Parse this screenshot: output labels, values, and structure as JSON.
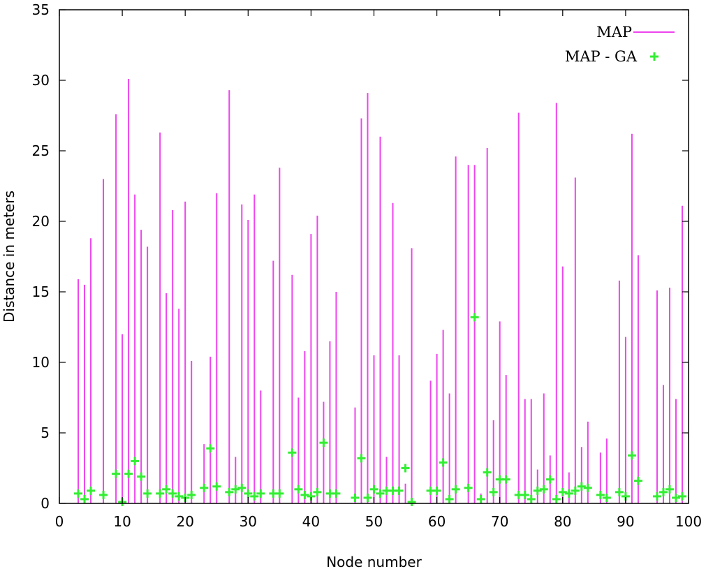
{
  "chart_data": {
    "type": "bar",
    "xlabel": "Node number",
    "ylabel": "Distance in meters",
    "xlim": [
      0,
      100
    ],
    "ylim": [
      0,
      35
    ],
    "xticks": [
      0,
      10,
      20,
      30,
      40,
      50,
      60,
      70,
      80,
      90,
      100
    ],
    "yticks": [
      0,
      5,
      10,
      15,
      20,
      25,
      30,
      35
    ],
    "grid": false,
    "legend_position": "top-right",
    "series": [
      {
        "name": "MAP",
        "style": "impulses",
        "color": "#ee44ee",
        "x": [
          3,
          4,
          5,
          7,
          9,
          10,
          11,
          12,
          13,
          14,
          16,
          17,
          18,
          19,
          20,
          21,
          23,
          24,
          25,
          27,
          28,
          29,
          30,
          31,
          32,
          34,
          35,
          37,
          38,
          39,
          40,
          41,
          42,
          43,
          44,
          47,
          48,
          49,
          50,
          51,
          52,
          53,
          54,
          55,
          56,
          59,
          60,
          61,
          62,
          63,
          65,
          66,
          67,
          68,
          69,
          70,
          71,
          73,
          74,
          75,
          76,
          77,
          78,
          79,
          80,
          81,
          82,
          83,
          84,
          86,
          87,
          89,
          90,
          91,
          92,
          95,
          96,
          97,
          98,
          99
        ],
        "y": [
          15.9,
          15.5,
          18.8,
          23.0,
          27.6,
          12.0,
          30.1,
          21.9,
          19.4,
          18.2,
          26.3,
          14.9,
          20.8,
          13.8,
          21.4,
          10.1,
          4.2,
          10.4,
          22.0,
          29.3,
          3.3,
          21.2,
          20.1,
          21.9,
          8.0,
          17.2,
          23.8,
          16.2,
          7.5,
          10.8,
          19.1,
          20.4,
          7.2,
          11.5,
          15.0,
          6.8,
          27.3,
          29.1,
          10.5,
          26.0,
          3.3,
          21.3,
          10.5,
          1.4,
          18.1,
          8.7,
          10.6,
          12.3,
          7.8,
          24.6,
          24.0,
          24.0,
          0.7,
          25.2,
          5.9,
          12.9,
          9.1,
          27.7,
          7.4,
          7.4,
          2.4,
          7.8,
          3.4,
          28.4,
          16.8,
          2.2,
          23.1,
          4.0,
          5.8,
          3.6,
          4.6,
          15.8,
          11.8,
          26.2,
          17.6,
          15.1,
          8.4,
          15.3,
          7.4,
          21.1
        ]
      },
      {
        "name": "MAP - GA",
        "style": "points",
        "color": "#33ee33",
        "x": [
          3,
          4,
          5,
          7,
          9,
          10,
          11,
          12,
          13,
          14,
          16,
          17,
          18,
          19,
          20,
          21,
          23,
          24,
          25,
          27,
          28,
          29,
          30,
          31,
          32,
          34,
          35,
          37,
          38,
          39,
          40,
          41,
          42,
          43,
          44,
          47,
          48,
          49,
          50,
          51,
          52,
          53,
          54,
          55,
          56,
          59,
          60,
          61,
          62,
          63,
          65,
          66,
          67,
          68,
          69,
          70,
          71,
          73,
          74,
          75,
          76,
          77,
          78,
          79,
          80,
          81,
          82,
          83,
          84,
          86,
          87,
          89,
          90,
          91,
          92,
          95,
          96,
          97,
          98,
          99
        ],
        "y": [
          0.7,
          0.3,
          0.9,
          0.6,
          2.1,
          0.1,
          2.1,
          3.0,
          1.9,
          0.7,
          0.7,
          1.0,
          0.7,
          0.5,
          0.4,
          0.6,
          1.1,
          3.9,
          1.2,
          0.8,
          1.0,
          1.1,
          0.7,
          0.5,
          0.7,
          0.7,
          0.7,
          3.6,
          1.0,
          0.6,
          0.5,
          0.8,
          4.3,
          0.7,
          0.7,
          0.4,
          3.2,
          0.4,
          1.0,
          0.7,
          0.9,
          0.9,
          0.9,
          2.5,
          0.1,
          0.9,
          0.9,
          2.9,
          0.3,
          1.0,
          1.1,
          13.2,
          0.3,
          2.2,
          0.8,
          1.7,
          1.7,
          0.6,
          0.6,
          0.3,
          0.9,
          1.0,
          1.7,
          0.3,
          0.8,
          0.7,
          0.9,
          1.2,
          1.1,
          0.6,
          0.4,
          0.8,
          0.5,
          3.4,
          1.6,
          0.5,
          0.8,
          1.0,
          0.4,
          0.5
        ]
      }
    ]
  }
}
